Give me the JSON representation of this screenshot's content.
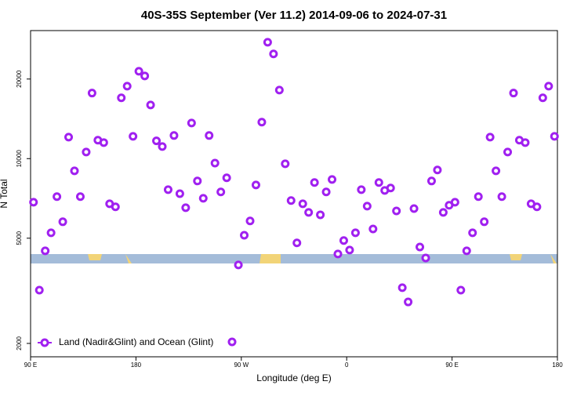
{
  "chart_data": {
    "type": "scatter",
    "title": "40S-35S September (Ver 11.2)   2014-09-06 to 2024-07-31",
    "x_label": "Longitude (deg E)",
    "y_label": "N Total",
    "log_y": true,
    "legend": "bottom-left",
    "xlim": [
      90,
      540
    ],
    "ylim": [
      1780,
      30500
    ],
    "xticks": [
      {
        "value": 90,
        "label": "90 E"
      },
      180,
      {
        "value": 270,
        "label": "90 W"
      },
      {
        "value": 360,
        "label": "0"
      },
      {
        "value": 450,
        "label": "90 E"
      },
      {
        "value": 540,
        "label": "180"
      }
    ],
    "yticks": [
      2000,
      5000,
      10000,
      20000
    ],
    "x": [
      92.5,
      97.5,
      102.5,
      107.5,
      112.5,
      117.5,
      122.5,
      127.5,
      132.5,
      137.5,
      142.5,
      147.5,
      152.5,
      157.5,
      162.5,
      167.5,
      172.5,
      177.5,
      182.5,
      187.5,
      192.5,
      197.5,
      202.5,
      207.5,
      212.5,
      217.5,
      222.5,
      227.5,
      232.5,
      237.5,
      242.5,
      247.5,
      252.5,
      257.5,
      267.5,
      272.5,
      277.5,
      282.5,
      287.5,
      292.5,
      297.5,
      302.5,
      307.5,
      312.5,
      317.5,
      322.5,
      327.5,
      332.5,
      337.5,
      342.5,
      347.5,
      352.5,
      357.5,
      362.5,
      367.5,
      372.5,
      377.5,
      382.5,
      387.5,
      392.5,
      397.5,
      402.5,
      407.5,
      412.5,
      417.5,
      422.5,
      427.5,
      432.5,
      437.5,
      442.5,
      447.5,
      452.5,
      457.5,
      462.5,
      467.5,
      472.5,
      477.5,
      482.5,
      487.5,
      492.5,
      497.5,
      502.5,
      507.5,
      512.5,
      517.5,
      522.5,
      527.5,
      532.5,
      537.5
    ],
    "series": [
      {
        "name": "Land (Nadir&Glint) and Ocean (Glint)",
        "color": "#a020f0",
        "values": [
          6840,
          3180,
          4480,
          5240,
          7180,
          5770,
          12060,
          8990,
          7180,
          10590,
          17700,
          11740,
          11500,
          6750,
          6570,
          16980,
          18800,
          12140,
          21400,
          20550,
          15960,
          11670,
          11110,
          7630,
          12230,
          7370,
          6520,
          13640,
          8230,
          7080,
          12230,
          9620,
          7480,
          8460,
          3960,
          5130,
          5810,
          7950,
          13740,
          27560,
          24890,
          18170,
          9560,
          6940,
          4800,
          6750,
          6260,
          8120,
          6130,
          7480,
          8340,
          4360,
          4900,
          4510,
          5240,
          7630,
          6610,
          5420,
          8120,
          7580,
          7740,
          6340,
          3250,
          2870,
          6470,
          4630,
          4210,
          8230,
          9060,
          6260,
          6660,
          6840,
          3180,
          4480,
          5240,
          7180,
          5770,
          12060,
          8990,
          7180,
          10590,
          17700,
          11740,
          11500,
          6750,
          6570,
          16980,
          18800,
          12140
        ]
      }
    ]
  }
}
